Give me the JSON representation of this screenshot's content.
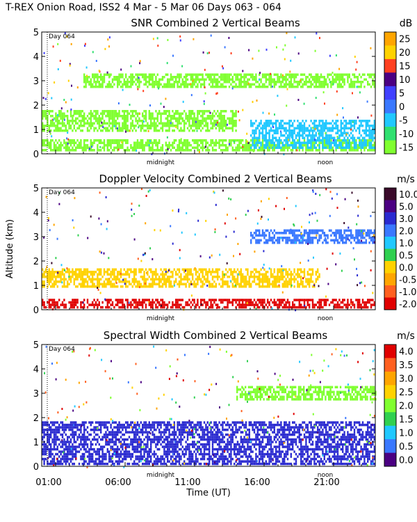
{
  "header": {
    "title": "T-REX Onion Road, ISS2    4 Mar -  5 Mar 06 Days 063 - 064"
  },
  "chart_data": [
    {
      "type": "heatmap",
      "title": "SNR Combined 2 Vertical Beams",
      "unit": "dB",
      "ylabel": "",
      "ylim": [
        0,
        5
      ],
      "yticks": [
        "0",
        "1",
        "2",
        "3",
        "4",
        "5"
      ],
      "day_label": "Day 064",
      "markers": [
        "midnight",
        "noon"
      ],
      "colorbar_labels": [
        "25",
        "20",
        "15",
        "10",
        "5",
        "0",
        "-5",
        "-10",
        "-15"
      ],
      "colorbar_colors": [
        "#ffa500",
        "#ffd200",
        "#ff4020",
        "#4b0082",
        "#4040ff",
        "#3a78ff",
        "#20c8ff",
        "#30e070",
        "#80ff30"
      ],
      "layers": [
        {
          "alt": [
            0.1,
            0.55
          ],
          "t": [
            0,
            24
          ],
          "color": "#80ff30"
        },
        {
          "alt": [
            0.9,
            1.8
          ],
          "t": [
            0,
            14
          ],
          "color": "#80ff30"
        },
        {
          "alt": [
            2.7,
            3.3
          ],
          "t": [
            3,
            24
          ],
          "color": "#80ff30"
        },
        {
          "alt": [
            0.2,
            1.4
          ],
          "t": [
            15,
            24
          ],
          "color": "#20c8ff"
        }
      ]
    },
    {
      "type": "heatmap",
      "title": "Doppler Velocity Combined 2 Vertical Beams",
      "unit": "m/s",
      "ylabel": "Altitude (km)",
      "ylim": [
        0,
        5
      ],
      "yticks": [
        "0",
        "1",
        "2",
        "3",
        "4",
        "5"
      ],
      "day_label": "Day 064",
      "markers": [
        "midnight",
        "noon"
      ],
      "colorbar_labels": [
        "10.0",
        "5.0",
        "3.0",
        "2.0",
        "1.0",
        "0.5",
        "0.0",
        "-0.5",
        "-1.0",
        "-2.0"
      ],
      "colorbar_colors": [
        "#3a0a2a",
        "#4b0082",
        "#2a2ad0",
        "#3a78ff",
        "#20c8ff",
        "#30d050",
        "#ffd200",
        "#ffa500",
        "#ff6020",
        "#e00000"
      ],
      "layers": [
        {
          "alt": [
            0.9,
            1.7
          ],
          "t": [
            0,
            20
          ],
          "color": "#ffd200"
        },
        {
          "alt": [
            2.7,
            3.3
          ],
          "t": [
            15,
            24
          ],
          "color": "#3a78ff"
        },
        {
          "alt": [
            0.05,
            0.4
          ],
          "t": [
            0,
            24
          ],
          "color": "#e00000"
        }
      ]
    },
    {
      "type": "heatmap",
      "title": "Spectral Width Combined 2 Vertical Beams",
      "unit": "m/s",
      "xlabel": "Time (UT)",
      "ylabel": "",
      "ylim": [
        0,
        5
      ],
      "yticks": [
        "0",
        "1",
        "2",
        "3",
        "4",
        "5"
      ],
      "day_label": "Day 064",
      "markers": [
        "midnight",
        "noon"
      ],
      "xticks": [
        "01:00",
        "06:00",
        "11:00",
        "16:00",
        "21:00"
      ],
      "colorbar_labels": [
        "4.0",
        "3.5",
        "3.0",
        "2.5",
        "2.0",
        "1.5",
        "1.0",
        "0.5",
        "0.0"
      ],
      "colorbar_colors": [
        "#e00000",
        "#ff6020",
        "#ffa500",
        "#ffd200",
        "#80ff30",
        "#30d050",
        "#20c8ff",
        "#3a78ff",
        "#4b0082"
      ],
      "layers": [
        {
          "alt": [
            0.05,
            1.8
          ],
          "t": [
            0,
            24
          ],
          "color": "#2a2ad0"
        },
        {
          "alt": [
            2.7,
            3.3
          ],
          "t": [
            14,
            24
          ],
          "color": "#80ff30"
        }
      ]
    }
  ]
}
